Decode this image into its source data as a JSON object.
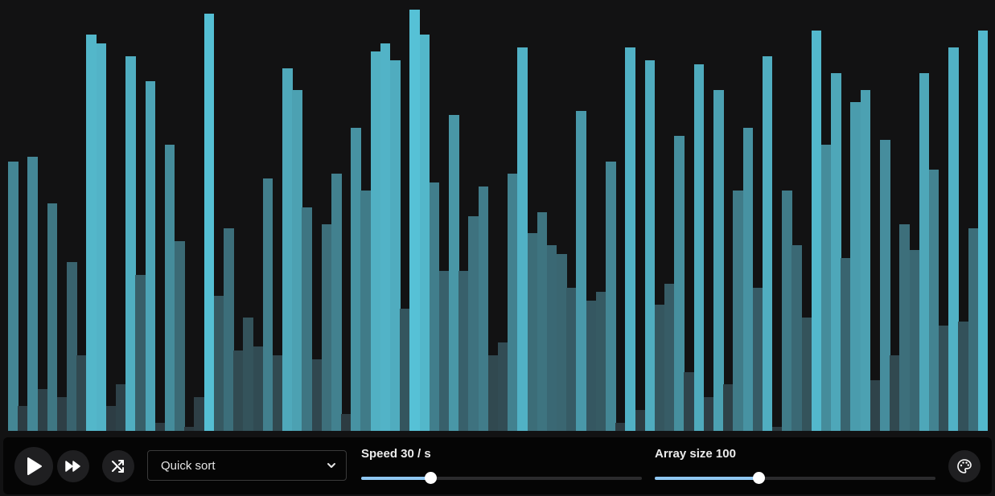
{
  "bars": {
    "count": 100,
    "max_value": 100,
    "values": [
      64,
      6,
      65,
      10,
      54,
      8,
      40,
      18,
      94,
      92,
      6,
      11,
      89,
      37,
      83,
      2,
      68,
      45,
      1,
      8,
      99,
      32,
      48,
      19,
      27,
      20,
      60,
      18,
      86,
      81,
      53,
      17,
      49,
      61,
      4,
      72,
      57,
      90,
      92,
      88,
      29,
      100,
      94,
      59,
      38,
      75,
      38,
      51,
      58,
      18,
      21,
      61,
      91,
      47,
      52,
      44,
      42,
      34,
      76,
      31,
      33,
      64,
      2,
      91,
      5,
      88,
      30,
      35,
      70,
      14,
      87,
      8,
      81,
      11,
      57,
      72,
      34,
      89,
      1,
      57,
      44,
      27,
      95,
      68,
      85,
      41,
      78,
      81,
      12,
      69,
      18,
      49,
      43,
      85,
      62,
      25,
      91,
      26,
      48,
      95
    ]
  },
  "colors": {
    "bar_bright": "#56c1d6",
    "bar_dark": "#2c3a40",
    "background": "#121213",
    "accent": "#8fc7f2"
  },
  "controls": {
    "play_icon": "play-icon",
    "step_icon": "fast-forward-icon",
    "shuffle_icon": "shuffle-icon",
    "palette_icon": "palette-icon",
    "algorithm": {
      "selected": "Quick sort"
    },
    "speed": {
      "label": "Speed 30 / s",
      "value": 30,
      "fraction": 0.245
    },
    "size": {
      "label": "Array size 100",
      "value": 100,
      "fraction": 0.37
    }
  }
}
